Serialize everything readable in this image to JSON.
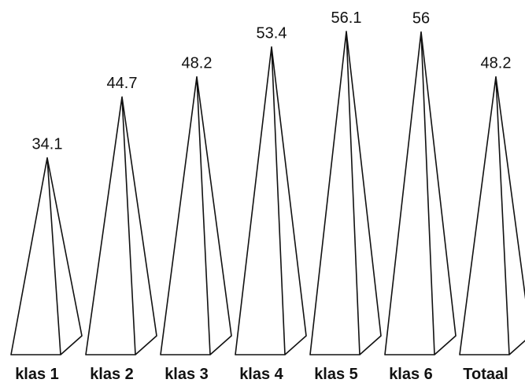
{
  "chart_data": {
    "type": "bar",
    "mark_shape": "pyramid",
    "categories": [
      "klas 1",
      "klas 2",
      "klas 3",
      "klas 4",
      "klas 5",
      "klas 6",
      "Totaal"
    ],
    "values": [
      34.1,
      44.7,
      48.2,
      53.4,
      56.1,
      56,
      48.2
    ],
    "data_labels": [
      "34.1",
      "44.7",
      "48.2",
      "53.4",
      "56.1",
      "56",
      "48.2"
    ],
    "title": "",
    "xlabel": "",
    "ylabel": "",
    "grid": false,
    "legend": "none"
  }
}
